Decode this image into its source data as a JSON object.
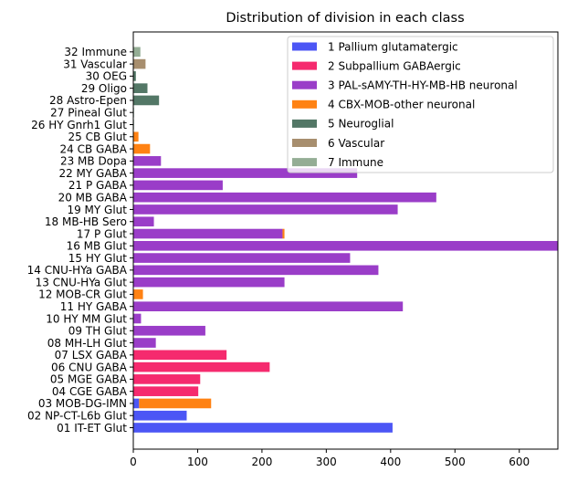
{
  "chart_data": {
    "type": "bar",
    "orientation": "horizontal",
    "stacked": true,
    "title": "Distribution of division in each class",
    "xlabel": "",
    "ylabel": "",
    "xlim": [
      0,
      660
    ],
    "xticks": [
      0,
      100,
      200,
      300,
      400,
      500,
      600
    ],
    "grid": false,
    "legend_position": "top-right",
    "categories": [
      "01 IT-ET Glut",
      "02 NP-CT-L6b Glut",
      "03 MOB-DG-IMN",
      "04 CGE GABA",
      "05 MGE GABA",
      "06 CNU GABA",
      "07 LSX GABA",
      "08 MH-LH Glut",
      "09 TH Glut",
      "10 HY MM Glut",
      "11 HY GABA",
      "12 MOB-CR Glut",
      "13 CNU-HYa Glut",
      "14 CNU-HYa GABA",
      "15 HY Glut",
      "16 MB Glut",
      "17 P Glut",
      "18 MB-HB Sero",
      "19 MY Glut",
      "20 MB GABA",
      "21 P GABA",
      "22 MY GABA",
      "23 MB Dopa",
      "24 CB GABA",
      "25 CB Glut",
      "26 HY Gnrh1 Glut",
      "27 Pineal Glut",
      "28 Astro-Epen",
      "29 Oligo",
      "30 OEG",
      "31 Vascular",
      "32 Immune"
    ],
    "series": [
      {
        "name": "1 Pallium glutamatergic",
        "color": "#4c56f5",
        "values": [
          403,
          83,
          9,
          0,
          0,
          0,
          0,
          0,
          0,
          0,
          0,
          0,
          0,
          0,
          0,
          0,
          0,
          0,
          0,
          0,
          0,
          0,
          0,
          0,
          0,
          0,
          0,
          0,
          0,
          0,
          0,
          0
        ]
      },
      {
        "name": "2 Subpallium GABAergic",
        "color": "#f52a6e",
        "values": [
          0,
          0,
          0,
          101,
          104,
          212,
          145,
          0,
          0,
          0,
          0,
          0,
          0,
          0,
          0,
          0,
          0,
          0,
          0,
          0,
          0,
          0,
          0,
          0,
          0,
          0,
          0,
          0,
          0,
          0,
          0,
          0
        ]
      },
      {
        "name": "3 PAL-sAMY-TH-HY-MB-HB neuronal",
        "color": "#9a3dc8",
        "values": [
          0,
          0,
          0,
          0,
          0,
          0,
          0,
          35,
          112,
          12,
          419,
          0,
          235,
          381,
          337,
          660,
          232,
          32,
          411,
          471,
          139,
          348,
          43,
          0,
          0,
          0,
          0,
          0,
          0,
          0,
          0,
          0
        ]
      },
      {
        "name": "4 CBX-MOB-other neuronal",
        "color": "#ff8213",
        "values": [
          0,
          0,
          112,
          0,
          0,
          0,
          0,
          0,
          0,
          0,
          0,
          15,
          0,
          0,
          0,
          0,
          3,
          0,
          0,
          0,
          0,
          0,
          0,
          26,
          8,
          0,
          0,
          0,
          0,
          0,
          0,
          0
        ]
      },
      {
        "name": "5 Neuroglial",
        "color": "#537766",
        "values": [
          0,
          0,
          0,
          0,
          0,
          0,
          0,
          0,
          0,
          0,
          0,
          0,
          0,
          0,
          0,
          0,
          0,
          0,
          0,
          0,
          0,
          0,
          0,
          0,
          0,
          1,
          1,
          40,
          22,
          4,
          0,
          0
        ]
      },
      {
        "name": "6 Vascular",
        "color": "#a78e6e",
        "values": [
          0,
          0,
          0,
          0,
          0,
          0,
          0,
          0,
          0,
          0,
          0,
          0,
          0,
          0,
          0,
          0,
          0,
          0,
          0,
          0,
          0,
          0,
          0,
          0,
          0,
          0,
          0,
          0,
          0,
          0,
          19,
          0
        ]
      },
      {
        "name": "7 Immune",
        "color": "#94ad95",
        "values": [
          0,
          0,
          0,
          0,
          0,
          0,
          0,
          0,
          0,
          0,
          0,
          0,
          0,
          0,
          0,
          0,
          0,
          0,
          0,
          0,
          0,
          0,
          0,
          0,
          0,
          0,
          0,
          0,
          0,
          0,
          0,
          11
        ]
      }
    ]
  }
}
